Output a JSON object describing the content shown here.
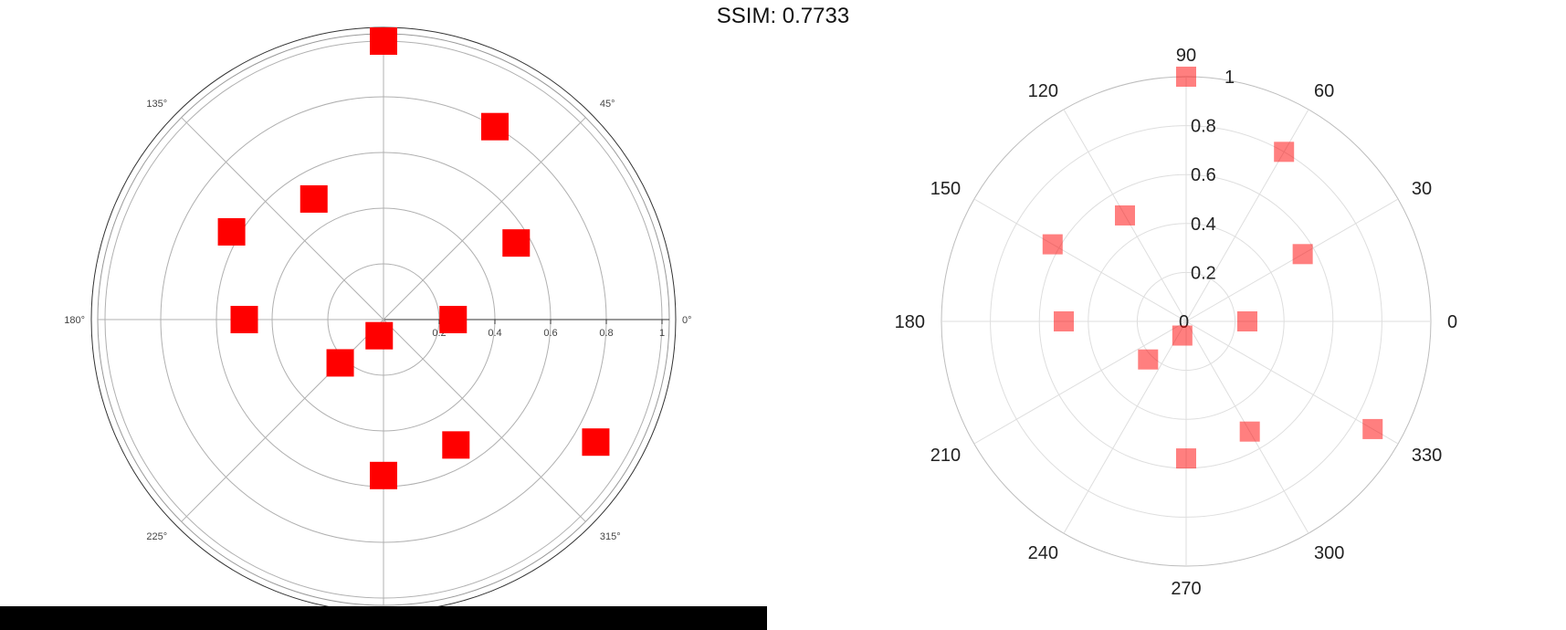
{
  "header": {
    "title": "SSIM: 0.7733"
  },
  "chart_data": [
    {
      "type": "scatter",
      "projection": "polar",
      "marker": "square",
      "marker_color": "#ff0000",
      "radial_range": [
        0,
        1
      ],
      "radial_ticks": [
        "0.2",
        "0.4",
        "0.6",
        "0.8",
        "1"
      ],
      "angular_ticks": [
        "0°",
        "45°",
        "135°",
        "180°",
        "225°",
        "315°"
      ],
      "angular_tick_degrees": [
        0,
        45,
        135,
        180,
        225,
        315
      ],
      "points": [
        {
          "theta": 90,
          "r": 1.0
        },
        {
          "theta": 60,
          "r": 0.8
        },
        {
          "theta": 30,
          "r": 0.55
        },
        {
          "theta": 0,
          "r": 0.25
        },
        {
          "theta": 120,
          "r": 0.5
        },
        {
          "theta": 150,
          "r": 0.63
        },
        {
          "theta": 180,
          "r": 0.5
        },
        {
          "theta": 225,
          "r": 0.22
        },
        {
          "theta": 255,
          "r": 0.06
        },
        {
          "theta": 270,
          "r": 0.56
        },
        {
          "theta": 300,
          "r": 0.52
        },
        {
          "theta": 330,
          "r": 0.88
        }
      ]
    },
    {
      "type": "scatter",
      "projection": "polar",
      "marker": "square",
      "marker_color": "#ff0000",
      "marker_opacity": 0.5,
      "radial_range": [
        0,
        1
      ],
      "radial_ticks": [
        "0",
        "0.2",
        "0.4",
        "0.6",
        "0.8",
        "1"
      ],
      "angular_ticks": [
        "0",
        "30",
        "60",
        "90",
        "120",
        "150",
        "180",
        "210",
        "240",
        "270",
        "300",
        "330"
      ],
      "angular_tick_degrees": [
        0,
        30,
        60,
        90,
        120,
        150,
        180,
        210,
        240,
        270,
        300,
        330
      ],
      "points": [
        {
          "theta": 90,
          "r": 1.0
        },
        {
          "theta": 60,
          "r": 0.8
        },
        {
          "theta": 30,
          "r": 0.55
        },
        {
          "theta": 0,
          "r": 0.25
        },
        {
          "theta": 120,
          "r": 0.5
        },
        {
          "theta": 150,
          "r": 0.63
        },
        {
          "theta": 180,
          "r": 0.5
        },
        {
          "theta": 225,
          "r": 0.22
        },
        {
          "theta": 255,
          "r": 0.06
        },
        {
          "theta": 270,
          "r": 0.56
        },
        {
          "theta": 300,
          "r": 0.52
        },
        {
          "theta": 330,
          "r": 0.88
        }
      ]
    }
  ]
}
